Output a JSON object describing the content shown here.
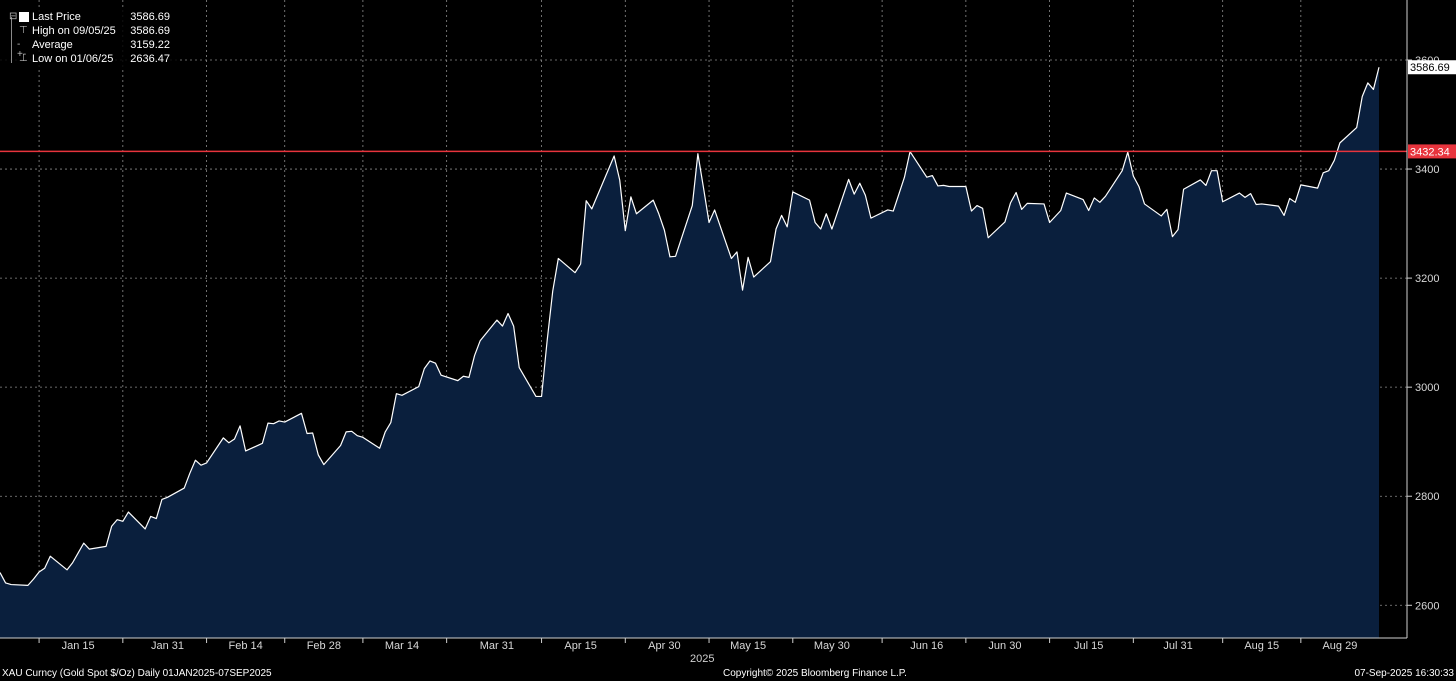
{
  "legend": {
    "last_label": "Last Price",
    "last_value": "3586.69",
    "high_label": "High on 09/05/25",
    "high_value": "3586.69",
    "avg_label": "Average",
    "avg_value": "3159.22",
    "low_label": "Low on 01/06/25",
    "low_value": "2636.47"
  },
  "footer": {
    "left": "XAU Curncy (Gold Spot  $/Oz)  Daily 01JAN2025-07SEP2025",
    "center": "Copyright© 2025 Bloomberg Finance L.P.",
    "right": "07-Sep-2025 16:30:33"
  },
  "colors": {
    "background": "#000000",
    "area_fill": "#0a1f3d",
    "line": "#ffffff",
    "reference": "#e8343d",
    "grid": "#8c8c8c"
  },
  "chart_data": {
    "type": "area",
    "x_tick_labels": [
      "Jan 15",
      "Jan 31",
      "Feb 14",
      "Feb 28",
      "Mar 14",
      "Mar 31",
      "Apr 15",
      "Apr 30",
      "May 15",
      "May 30",
      "Jun 16",
      "Jun 30",
      "Jul 15",
      "Jul 31",
      "Aug 15",
      "Aug 29"
    ],
    "x_sublabel": "2025",
    "y_ticks": [
      2600,
      2800,
      3000,
      3200,
      3400,
      3600
    ],
    "ylim": [
      2540,
      3710
    ],
    "reference_line": {
      "value": 3432.34,
      "label": "3432.34"
    },
    "last_label": "3586.69",
    "x_range": [
      "2025-01-01",
      "2025-09-07"
    ],
    "series": [
      {
        "points": [
          [
            "2025-01-01",
            2660
          ],
          [
            "2025-01-02",
            2641
          ],
          [
            "2025-01-03",
            2638
          ],
          [
            "2025-01-06",
            2636.47
          ],
          [
            "2025-01-07",
            2648
          ],
          [
            "2025-01-08",
            2661
          ],
          [
            "2025-01-09",
            2668
          ],
          [
            "2025-01-10",
            2690
          ],
          [
            "2025-01-13",
            2665
          ],
          [
            "2025-01-14",
            2678
          ],
          [
            "2025-01-15",
            2696
          ],
          [
            "2025-01-16",
            2714
          ],
          [
            "2025-01-17",
            2703
          ],
          [
            "2025-01-20",
            2708
          ],
          [
            "2025-01-21",
            2745
          ],
          [
            "2025-01-22",
            2757
          ],
          [
            "2025-01-23",
            2754
          ],
          [
            "2025-01-24",
            2771
          ],
          [
            "2025-01-27",
            2740
          ],
          [
            "2025-01-28",
            2763
          ],
          [
            "2025-01-29",
            2759
          ],
          [
            "2025-01-30",
            2794
          ],
          [
            "2025-01-31",
            2798
          ],
          [
            "2025-02-03",
            2815
          ],
          [
            "2025-02-04",
            2842
          ],
          [
            "2025-02-05",
            2866
          ],
          [
            "2025-02-06",
            2857
          ],
          [
            "2025-02-07",
            2861
          ],
          [
            "2025-02-10",
            2907
          ],
          [
            "2025-02-11",
            2898
          ],
          [
            "2025-02-12",
            2905
          ],
          [
            "2025-02-13",
            2929
          ],
          [
            "2025-02-14",
            2883
          ],
          [
            "2025-02-17",
            2897
          ],
          [
            "2025-02-18",
            2934
          ],
          [
            "2025-02-19",
            2933
          ],
          [
            "2025-02-20",
            2938
          ],
          [
            "2025-02-21",
            2936
          ],
          [
            "2025-02-24",
            2952
          ],
          [
            "2025-02-25",
            2915
          ],
          [
            "2025-02-26",
            2916
          ],
          [
            "2025-02-27",
            2876
          ],
          [
            "2025-02-28",
            2858
          ],
          [
            "2025-03-03",
            2893
          ],
          [
            "2025-03-04",
            2918
          ],
          [
            "2025-03-05",
            2919
          ],
          [
            "2025-03-06",
            2911
          ],
          [
            "2025-03-07",
            2908
          ],
          [
            "2025-03-10",
            2888
          ],
          [
            "2025-03-11",
            2918
          ],
          [
            "2025-03-12",
            2935
          ],
          [
            "2025-03-13",
            2988
          ],
          [
            "2025-03-14",
            2985
          ],
          [
            "2025-03-17",
            3001
          ],
          [
            "2025-03-18",
            3034
          ],
          [
            "2025-03-19",
            3048
          ],
          [
            "2025-03-20",
            3044
          ],
          [
            "2025-03-21",
            3022
          ],
          [
            "2025-03-24",
            3012
          ],
          [
            "2025-03-25",
            3020
          ],
          [
            "2025-03-26",
            3018
          ],
          [
            "2025-03-27",
            3058
          ],
          [
            "2025-03-28",
            3085
          ],
          [
            "2025-03-31",
            3123
          ],
          [
            "2025-04-01",
            3112
          ],
          [
            "2025-04-02",
            3135
          ],
          [
            "2025-04-03",
            3112
          ],
          [
            "2025-04-04",
            3036
          ],
          [
            "2025-04-07",
            2983
          ],
          [
            "2025-04-08",
            2983
          ],
          [
            "2025-04-09",
            3085
          ],
          [
            "2025-04-10",
            3176
          ],
          [
            "2025-04-11",
            3236
          ],
          [
            "2025-04-14",
            3210
          ],
          [
            "2025-04-15",
            3226
          ],
          [
            "2025-04-16",
            3342
          ],
          [
            "2025-04-17",
            3327
          ],
          [
            "2025-04-21",
            3424
          ],
          [
            "2025-04-22",
            3380
          ],
          [
            "2025-04-23",
            3287
          ],
          [
            "2025-04-24",
            3349
          ],
          [
            "2025-04-25",
            3318
          ],
          [
            "2025-04-28",
            3343
          ],
          [
            "2025-04-29",
            3318
          ],
          [
            "2025-04-30",
            3288
          ],
          [
            "2025-05-01",
            3239
          ],
          [
            "2025-05-02",
            3240
          ],
          [
            "2025-05-05",
            3333
          ],
          [
            "2025-05-06",
            3428
          ],
          [
            "2025-05-07",
            3366
          ],
          [
            "2025-05-08",
            3302
          ],
          [
            "2025-05-09",
            3325
          ],
          [
            "2025-05-12",
            3236
          ],
          [
            "2025-05-13",
            3248
          ],
          [
            "2025-05-14",
            3178
          ],
          [
            "2025-05-15",
            3238
          ],
          [
            "2025-05-16",
            3202
          ],
          [
            "2025-05-19",
            3230
          ],
          [
            "2025-05-20",
            3290
          ],
          [
            "2025-05-21",
            3315
          ],
          [
            "2025-05-22",
            3294
          ],
          [
            "2025-05-23",
            3358
          ],
          [
            "2025-05-26",
            3343
          ],
          [
            "2025-05-27",
            3302
          ],
          [
            "2025-05-28",
            3290
          ],
          [
            "2025-05-29",
            3318
          ],
          [
            "2025-05-30",
            3290
          ],
          [
            "2025-06-02",
            3381
          ],
          [
            "2025-06-03",
            3354
          ],
          [
            "2025-06-04",
            3374
          ],
          [
            "2025-06-05",
            3352
          ],
          [
            "2025-06-06",
            3310
          ],
          [
            "2025-06-09",
            3325
          ],
          [
            "2025-06-10",
            3323
          ],
          [
            "2025-06-11",
            3354
          ],
          [
            "2025-06-12",
            3385
          ],
          [
            "2025-06-13",
            3432
          ],
          [
            "2025-06-16",
            3385
          ],
          [
            "2025-06-17",
            3388
          ],
          [
            "2025-06-18",
            3369
          ],
          [
            "2025-06-19",
            3370
          ],
          [
            "2025-06-20",
            3368
          ],
          [
            "2025-06-23",
            3368
          ],
          [
            "2025-06-24",
            3323
          ],
          [
            "2025-06-25",
            3333
          ],
          [
            "2025-06-26",
            3328
          ],
          [
            "2025-06-27",
            3274
          ],
          [
            "2025-06-30",
            3303
          ],
          [
            "2025-07-01",
            3338
          ],
          [
            "2025-07-02",
            3357
          ],
          [
            "2025-07-03",
            3326
          ],
          [
            "2025-07-04",
            3337
          ],
          [
            "2025-07-07",
            3336
          ],
          [
            "2025-07-08",
            3302
          ],
          [
            "2025-07-09",
            3313
          ],
          [
            "2025-07-10",
            3324
          ],
          [
            "2025-07-11",
            3356
          ],
          [
            "2025-07-14",
            3344
          ],
          [
            "2025-07-15",
            3324
          ],
          [
            "2025-07-16",
            3347
          ],
          [
            "2025-07-17",
            3339
          ],
          [
            "2025-07-18",
            3350
          ],
          [
            "2025-07-21",
            3397
          ],
          [
            "2025-07-22",
            3431
          ],
          [
            "2025-07-23",
            3387
          ],
          [
            "2025-07-24",
            3368
          ],
          [
            "2025-07-25",
            3336
          ],
          [
            "2025-07-28",
            3314
          ],
          [
            "2025-07-29",
            3326
          ],
          [
            "2025-07-30",
            3276
          ],
          [
            "2025-07-31",
            3289
          ],
          [
            "2025-08-01",
            3363
          ],
          [
            "2025-08-04",
            3380
          ],
          [
            "2025-08-05",
            3370
          ],
          [
            "2025-08-06",
            3397
          ],
          [
            "2025-08-07",
            3397
          ],
          [
            "2025-08-08",
            3340
          ],
          [
            "2025-08-11",
            3356
          ],
          [
            "2025-08-12",
            3348
          ],
          [
            "2025-08-13",
            3355
          ],
          [
            "2025-08-14",
            3335
          ],
          [
            "2025-08-15",
            3336
          ],
          [
            "2025-08-18",
            3332
          ],
          [
            "2025-08-19",
            3315
          ],
          [
            "2025-08-20",
            3346
          ],
          [
            "2025-08-21",
            3339
          ],
          [
            "2025-08-22",
            3371
          ],
          [
            "2025-08-25",
            3365
          ],
          [
            "2025-08-26",
            3393
          ],
          [
            "2025-08-27",
            3397
          ],
          [
            "2025-08-28",
            3416
          ],
          [
            "2025-08-29",
            3448
          ],
          [
            "2025-09-01",
            3476
          ],
          [
            "2025-09-02",
            3533
          ],
          [
            "2025-09-03",
            3558
          ],
          [
            "2025-09-04",
            3546
          ],
          [
            "2025-09-05",
            3586.69
          ]
        ]
      }
    ]
  }
}
